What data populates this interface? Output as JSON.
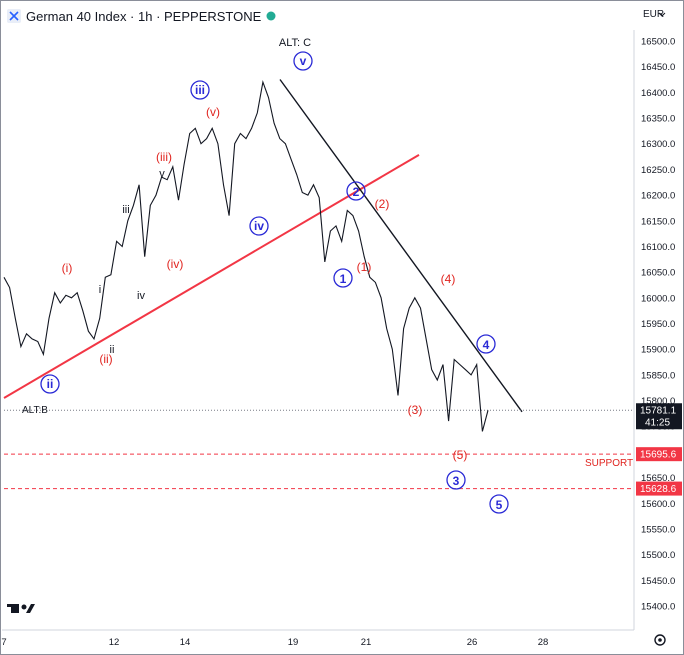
{
  "header": {
    "title": "German 40 Index · 1h · PEPPERSTONE",
    "currency": "EUR"
  },
  "price_scale": {
    "ticks": [
      "16500.0",
      "16450.0",
      "16400.0",
      "16350.0",
      "16300.0",
      "16250.0",
      "16200.0",
      "16150.0",
      "16100.0",
      "16050.0",
      "16000.0",
      "15950.0",
      "15900.0",
      "15850.0",
      "15800.0",
      "15750.0",
      "15700.0",
      "15650.0",
      "15600.0",
      "15550.0",
      "15500.0",
      "15450.0",
      "15400.0"
    ],
    "current_price": "15781.1",
    "countdown": "41:25",
    "support_upper_tag": "15695.6",
    "support_lower_tag": "15628.6"
  },
  "time_axis": {
    "ticks": [
      "7",
      "12",
      "14",
      "19",
      "21",
      "26",
      "28"
    ]
  },
  "annotations": {
    "alt_c": "ALT: C",
    "alt_b": "ALT:B",
    "support": "SUPPORT",
    "blue": {
      "ii": "ii",
      "iii": "iii",
      "iv": "iv",
      "v": "v",
      "w1": "1",
      "w2": "2",
      "w3": "3",
      "w4": "4",
      "w5": "5"
    },
    "red": {
      "i": "(i)",
      "ii": "(ii)",
      "iii": "(iii)",
      "iv": "(iv)",
      "v": "(v)",
      "w1": "(1)",
      "w2": "(2)",
      "w3": "(3)",
      "w4": "(4)",
      "w5": "(5)"
    },
    "black": {
      "i": "i",
      "ii": "ii",
      "iii": "iii",
      "iv": "iv",
      "v": "v"
    }
  },
  "colors": {
    "trendline_red": "#f23645",
    "trendline_black": "#131722",
    "price_line": "#131722",
    "support_dashed": "#f23645",
    "wave_blue": "#2b2bd6",
    "wave_red": "#e0241f"
  },
  "chart_data": {
    "type": "line",
    "title": "German 40 Index · 1h · PEPPERSTONE",
    "x_tick_labels": [
      "7",
      "12",
      "14",
      "19",
      "21",
      "26",
      "28"
    ],
    "ylim": [
      15360,
      16560
    ],
    "series": [
      {
        "values": [
          16040,
          16020,
          15960,
          15905,
          15930,
          15920,
          15915,
          15890,
          15960,
          16010,
          15990,
          16005,
          16000,
          16010,
          15975,
          15935,
          15920,
          15960,
          16040,
          16045,
          16110,
          16100,
          16150,
          16180,
          16220,
          16080,
          16180,
          16200,
          16235,
          16230,
          16255,
          16190,
          16260,
          16320,
          16330,
          16300,
          16310,
          16330,
          16300,
          16220,
          16160,
          16300,
          16320,
          16310,
          16330,
          16360,
          16420,
          16390,
          16340,
          16310,
          16300,
          16270,
          16240,
          16205,
          16200,
          16220,
          16195,
          16070,
          16130,
          16140,
          16110,
          16170,
          16160,
          16130,
          16080,
          16040,
          16030,
          16000,
          15940,
          15900,
          15810,
          15940,
          15980,
          16000,
          15980,
          15920,
          15860,
          15840,
          15870,
          15760,
          15880,
          15870,
          15860,
          15850,
          15870,
          15740,
          15781
        ]
      }
    ],
    "horizontal_levels": [
      15781.1,
      15695.6,
      15628.6
    ],
    "trendlines": [
      {
        "color": "red",
        "from": {
          "x_label": "7",
          "y": 15805
        },
        "to": {
          "x_label": "21",
          "y": 16290
        }
      },
      {
        "color": "black",
        "from": {
          "x_label": "19",
          "y": 16425
        },
        "to": {
          "x_label": "28",
          "y": 15778
        }
      }
    ],
    "grid": false,
    "legend": "none"
  }
}
